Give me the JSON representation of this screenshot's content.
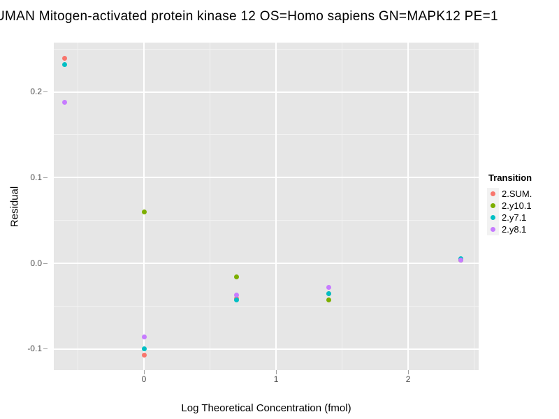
{
  "title": "UMAN Mitogen-activated protein kinase 12 OS=Homo sapiens GN=MAPK12 PE=1",
  "chart_data": {
    "type": "scatter",
    "title": "UMAN Mitogen-activated protein kinase 12 OS=Homo sapiens GN=MAPK12 PE=1",
    "xlabel": "Log Theoretical Concentration (fmol)",
    "ylabel": "Residual",
    "xlim": [
      -0.6825,
      2.534
    ],
    "ylim": [
      -0.1246,
      0.2575
    ],
    "grid": true,
    "x_ticks": [
      {
        "value": 0,
        "label": "0"
      },
      {
        "value": 1,
        "label": "1"
      },
      {
        "value": 2,
        "label": "2"
      }
    ],
    "y_ticks": [
      {
        "value": 0.2,
        "label": "0.2"
      },
      {
        "value": 0.1,
        "label": "0.1"
      },
      {
        "value": 0.0,
        "label": "0.0"
      },
      {
        "value": -0.1,
        "label": "-0.1"
      }
    ],
    "x_minor_gridlines": [
      -0.5,
      0.5,
      1.5,
      2.5
    ],
    "y_minor_gridlines": [
      0.25,
      0.15,
      0.05,
      -0.05
    ],
    "legend": {
      "title": "Transition",
      "position": "right",
      "entries": [
        "2.SUM.",
        "2.y10.1",
        "2.y7.1",
        "2.y8.1"
      ]
    },
    "series": [
      {
        "name": "2.SUM.",
        "color": "#F8766D",
        "points": [
          [
            -0.6,
            0.239
          ],
          [
            0,
            -0.107
          ],
          [
            0.7,
            -0.041
          ],
          [
            1.4,
            -0.035
          ],
          [
            2.4,
            0.004
          ]
        ]
      },
      {
        "name": "2.y10.1",
        "color": "#7CAE00",
        "points": [
          [
            0,
            0.06
          ],
          [
            0.7,
            -0.016
          ],
          [
            1.4,
            -0.043
          ],
          [
            2.4,
            0.004
          ]
        ]
      },
      {
        "name": "2.y7.1",
        "color": "#00BFC4",
        "points": [
          [
            -0.6,
            0.232
          ],
          [
            0,
            -0.1
          ],
          [
            0.7,
            -0.043
          ],
          [
            1.4,
            -0.035
          ],
          [
            2.4,
            0.005
          ]
        ]
      },
      {
        "name": "2.y8.1",
        "color": "#C77CFF",
        "points": [
          [
            -0.6,
            0.188
          ],
          [
            0,
            -0.086
          ],
          [
            0.7,
            -0.037
          ],
          [
            1.4,
            -0.028
          ],
          [
            2.4,
            0.004
          ]
        ]
      }
    ],
    "colors": {
      "panel_bg": "#E6E6E6",
      "grid_major": "#FFFFFF",
      "grid_minor": "#F2F2F2",
      "tick_text": "#4D4D4D"
    }
  }
}
